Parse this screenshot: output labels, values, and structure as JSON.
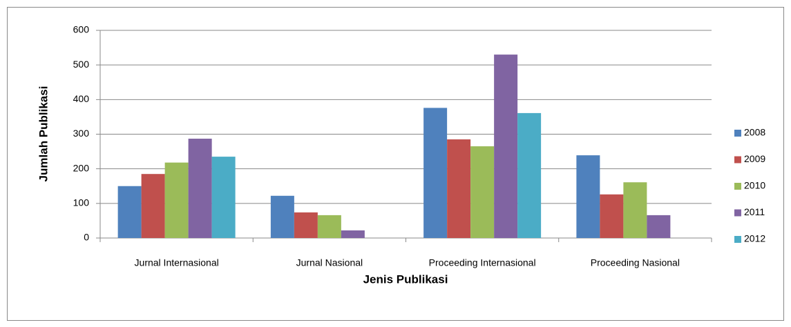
{
  "chart_data": {
    "type": "bar",
    "x_label": "Jenis Publikasi",
    "y_label": "Jumlah Publikasi",
    "categories": [
      "Jurnal Internasional",
      "Jurnal Nasional",
      "Proceeding Internasional",
      "Proceeding Nasional"
    ],
    "series": [
      {
        "name": "2008",
        "color": "#4f81bd",
        "values": [
          150,
          122,
          376,
          239
        ]
      },
      {
        "name": "2009",
        "color": "#c0504d",
        "values": [
          185,
          74,
          285,
          126
        ]
      },
      {
        "name": "2010",
        "color": "#9bbb59",
        "values": [
          218,
          66,
          265,
          161
        ]
      },
      {
        "name": "2011",
        "color": "#8064a2",
        "values": [
          287,
          22,
          530,
          66
        ]
      },
      {
        "name": "2012",
        "color": "#4bacc6",
        "values": [
          235,
          0,
          361,
          0
        ]
      }
    ],
    "ylim": [
      0,
      600
    ],
    "yticks": [
      0,
      100,
      200,
      300,
      400,
      500,
      600
    ],
    "grid": true,
    "legend": "right"
  }
}
